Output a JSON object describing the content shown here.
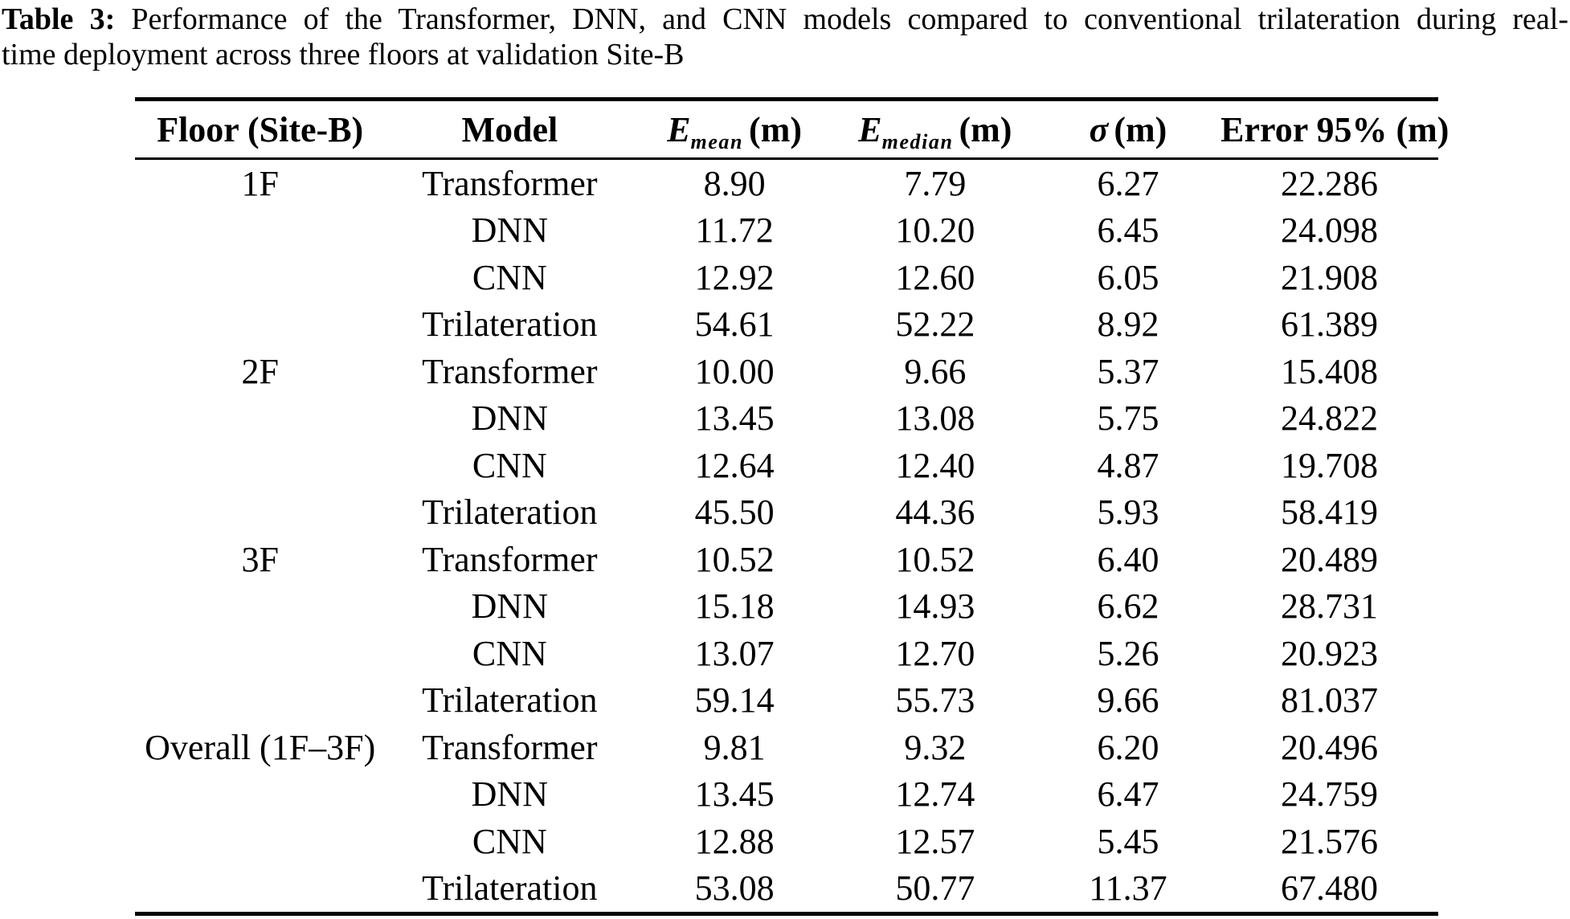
{
  "caption": {
    "label": "Table 3:",
    "line1_rest": " Performance of the Transformer, DNN, and CNN models compared to conventional trilateration during real-",
    "line2": "time deployment across three floors at validation Site-B"
  },
  "table": {
    "column_keys": [
      "floor",
      "model",
      "e_mean",
      "e_median",
      "sigma",
      "error_95"
    ],
    "headers": [
      {
        "label": "Floor (Site-B)"
      },
      {
        "label": "Model"
      },
      {
        "symbol": "E",
        "subscript": "mean",
        "unit": "(m)"
      },
      {
        "symbol": "E",
        "subscript": "median",
        "unit": "(m)"
      },
      {
        "symbol": "σ",
        "subscript": "",
        "unit": "(m)"
      },
      {
        "label": "Error 95% (m)"
      }
    ],
    "rows": [
      [
        "1F",
        "Transformer",
        "8.90",
        "7.79",
        "6.27",
        "22.286"
      ],
      [
        "",
        "DNN",
        "11.72",
        "10.20",
        "6.45",
        "24.098"
      ],
      [
        "",
        "CNN",
        "12.92",
        "12.60",
        "6.05",
        "21.908"
      ],
      [
        "",
        "Trilateration",
        "54.61",
        "52.22",
        "8.92",
        "61.389"
      ],
      [
        "2F",
        "Transformer",
        "10.00",
        "9.66",
        "5.37",
        "15.408"
      ],
      [
        "",
        "DNN",
        "13.45",
        "13.08",
        "5.75",
        "24.822"
      ],
      [
        "",
        "CNN",
        "12.64",
        "12.40",
        "4.87",
        "19.708"
      ],
      [
        "",
        "Trilateration",
        "45.50",
        "44.36",
        "5.93",
        "58.419"
      ],
      [
        "3F",
        "Transformer",
        "10.52",
        "10.52",
        "6.40",
        "20.489"
      ],
      [
        "",
        "DNN",
        "15.18",
        "14.93",
        "6.62",
        "28.731"
      ],
      [
        "",
        "CNN",
        "13.07",
        "12.70",
        "5.26",
        "20.923"
      ],
      [
        "",
        "Trilateration",
        "59.14",
        "55.73",
        "9.66",
        "81.037"
      ],
      [
        "Overall (1F–3F)",
        "Transformer",
        "9.81",
        "9.32",
        "6.20",
        "20.496"
      ],
      [
        "",
        "DNN",
        "13.45",
        "12.74",
        "6.47",
        "24.759"
      ],
      [
        "",
        "CNN",
        "12.88",
        "12.57",
        "5.45",
        "21.576"
      ],
      [
        "",
        "Trilateration",
        "53.08",
        "50.77",
        "11.37",
        "67.480"
      ]
    ]
  },
  "colors": {
    "text": "#000000",
    "background": "#ffffff",
    "rule": "#000000"
  }
}
